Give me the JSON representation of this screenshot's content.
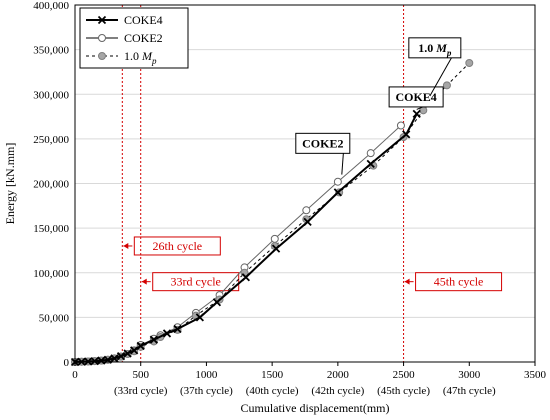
{
  "chart_data": {
    "type": "line",
    "ylabel": "Energy [kN.mm]",
    "xlabel": "Cumulative displacement(mm)",
    "xlim": [
      0,
      3500
    ],
    "ylim": [
      0,
      400000
    ],
    "x_ticks": [
      "0",
      "500",
      "1000",
      "1500",
      "2000",
      "2500",
      "3000",
      "3500"
    ],
    "y_ticks": [
      "0",
      "50,000",
      "100,000",
      "150,000",
      "200,000",
      "250,000",
      "300,000",
      "350,000",
      "400,000"
    ],
    "grid": "horizontal",
    "legend_position": "top-left",
    "cycle_tick_labels": [
      {
        "x": 500,
        "label": "(33rd cycle)"
      },
      {
        "x": 1000,
        "label": "(37th cycle)"
      },
      {
        "x": 1500,
        "label": "(40th cycle)"
      },
      {
        "x": 2000,
        "label": "(42th cycle)"
      },
      {
        "x": 2500,
        "label": "(45th cycle)"
      },
      {
        "x": 3000,
        "label": "(47th cycle)"
      }
    ],
    "series": [
      {
        "name": "COKE4",
        "marker": "x",
        "color": "#000000",
        "x": [
          0,
          50,
          100,
          150,
          200,
          250,
          300,
          350,
          400,
          450,
          500,
          600,
          700,
          780,
          950,
          1080,
          1300,
          1530,
          1770,
          2000,
          2250,
          2520,
          2600
        ],
        "y": [
          0,
          300,
          600,
          1000,
          1600,
          2500,
          4000,
          6500,
          9500,
          13000,
          18000,
          25000,
          32000,
          37000,
          50000,
          67000,
          95000,
          127000,
          157000,
          190000,
          222000,
          255000,
          278000
        ]
      },
      {
        "name": "COKE2",
        "marker": "open-circle",
        "color": "#666666",
        "x": [
          0,
          50,
          100,
          150,
          200,
          250,
          300,
          350,
          400,
          450,
          500,
          600,
          650,
          780,
          920,
          1100,
          1290,
          1520,
          1760,
          2000,
          2250,
          2480
        ],
        "y": [
          0,
          300,
          600,
          1000,
          1600,
          2500,
          4000,
          6000,
          9000,
          13000,
          19000,
          26000,
          30000,
          39000,
          55000,
          75000,
          106000,
          138000,
          170000,
          202000,
          234000,
          265000
        ]
      },
      {
        "name": "1.0 Mp",
        "marker": "filled-circle",
        "color": "#888888",
        "dashed": true,
        "x": [
          0,
          50,
          100,
          150,
          200,
          250,
          300,
          350,
          400,
          450,
          500,
          600,
          650,
          780,
          920,
          1100,
          1290,
          1520,
          1760,
          2010,
          2270,
          2500,
          2650,
          2830,
          3000
        ],
        "y": [
          0,
          300,
          600,
          1000,
          1600,
          2500,
          4000,
          6000,
          9000,
          12000,
          17000,
          23000,
          28000,
          36000,
          52000,
          70000,
          100000,
          130000,
          160000,
          190000,
          220000,
          252000,
          282000,
          310000,
          335000
        ]
      }
    ],
    "vlines": [
      {
        "x": 360,
        "label": "26th cycle",
        "label_y": 130000
      },
      {
        "x": 500,
        "label": "33rd cycle",
        "label_y": 90000
      },
      {
        "x": 2500,
        "label": "45th cycle",
        "label_y": 90000
      }
    ],
    "annotations": [
      {
        "text": "COKE2",
        "label_x": 1680,
        "label_y": 245000,
        "arrow_to_x": 2030,
        "arrow_to_y": 210000
      },
      {
        "text": "COKE4",
        "label_x": 2390,
        "label_y": 297000,
        "arrow_to_x": 2600,
        "arrow_to_y": 283000
      },
      {
        "text": "1.0",
        "italic_suffix": "M",
        "sub": "p",
        "label_x": 2540,
        "label_y": 352000,
        "arrow_to_x": 2700,
        "arrow_to_y": 298000
      }
    ],
    "annotation_color": "#d40000"
  }
}
